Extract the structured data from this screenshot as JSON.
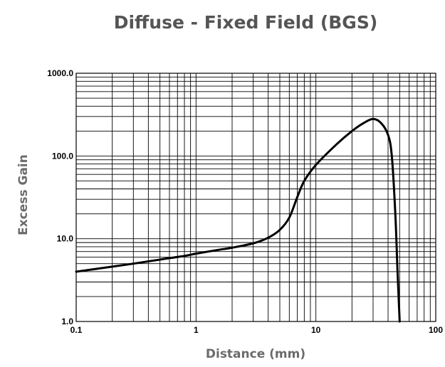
{
  "chart_data": {
    "type": "line",
    "title": "Diffuse - Fixed Field (BGS)",
    "xlabel": "Distance (mm)",
    "ylabel": "Excess Gain",
    "xscale": "log",
    "yscale": "log",
    "xlim": [
      0.1,
      100
    ],
    "ylim": [
      1,
      1000
    ],
    "grid": true,
    "x_ticks": [
      0.1,
      1,
      10,
      100
    ],
    "x_tick_labels": [
      "0.1",
      "1",
      "10",
      "100"
    ],
    "y_ticks": [
      1,
      10,
      100,
      1000
    ],
    "y_tick_labels": [
      "1.0",
      "10.0",
      "100.0",
      "1000.0"
    ],
    "series": [
      {
        "name": "",
        "x": [
          0.1,
          0.2,
          0.3,
          0.5,
          0.8,
          1,
          1.5,
          2,
          3,
          4,
          5,
          6,
          7,
          8,
          10,
          15,
          20,
          25,
          30,
          35,
          40,
          43,
          46,
          48,
          50
        ],
        "y": [
          4.0,
          4.6,
          5.0,
          5.6,
          6.2,
          6.6,
          7.3,
          7.8,
          8.8,
          10.3,
          12.8,
          18,
          32,
          50,
          78,
          140,
          200,
          250,
          280,
          250,
          180,
          100,
          20,
          4,
          1.0
        ]
      }
    ]
  }
}
